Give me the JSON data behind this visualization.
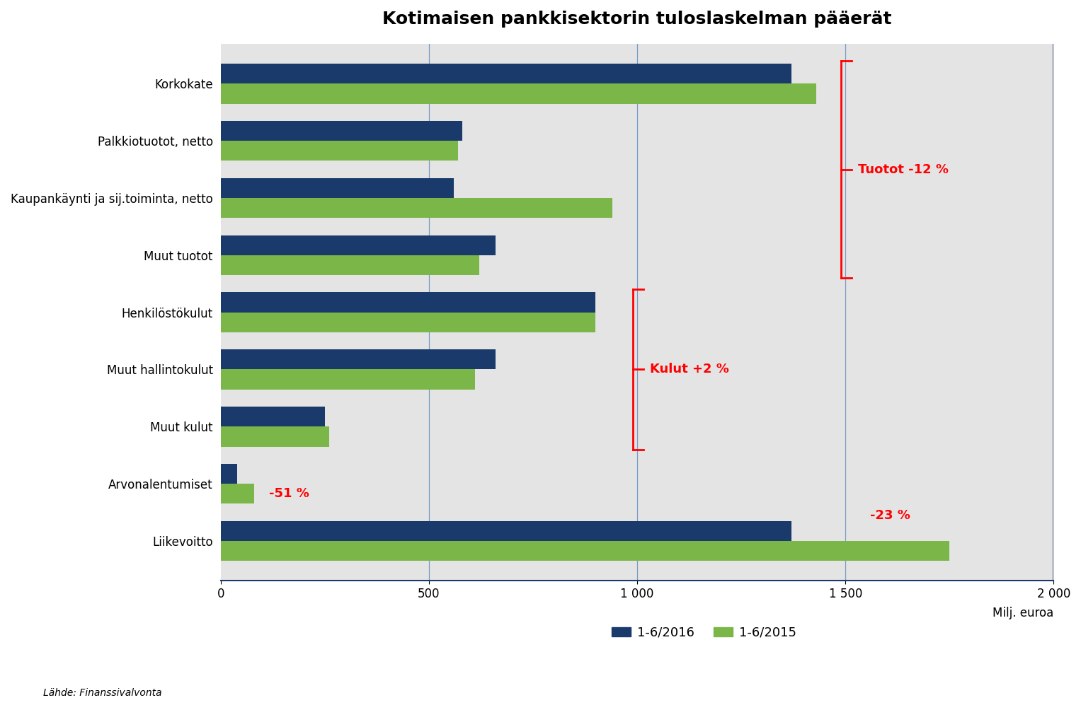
{
  "title": "Kotimaisen pankkisektorin tuloslaskelman pääerät",
  "categories": [
    "Korkokate",
    "Palkkiotuotot, netto",
    "Kaupankäynti ja sij.toiminta, netto",
    "Muut tuotot",
    "Henkilöstökulut",
    "Muut hallintokulut",
    "Muut kulut",
    "Arvonalentumiset",
    "Liikevoitto"
  ],
  "values_2016": [
    1370,
    580,
    560,
    660,
    900,
    660,
    250,
    40,
    1370
  ],
  "values_2015": [
    1430,
    570,
    940,
    620,
    900,
    610,
    260,
    80,
    1750
  ],
  "color_2016": "#1a3a6b",
  "color_2015": "#7ab648",
  "bg_color": "#e4e4e4",
  "xlabel": "Milj. euroa",
  "xlim": [
    0,
    2000
  ],
  "xticks": [
    0,
    500,
    1000,
    1500,
    2000
  ],
  "xtick_labels": [
    "0",
    "500",
    "1 000",
    "1 500",
    "2 000"
  ],
  "vlines": [
    500,
    1000,
    1500
  ],
  "annotation_51": "-51 %",
  "annotation_23": "-23 %",
  "annotation_tuotot": "Tuotot -12 %",
  "annotation_kulut": "Kulut +2 %",
  "source_text": "Lähde: Finanssivalvonta",
  "legend_2016": "1-6/2016",
  "legend_2015": "1-6/2015",
  "title_fontsize": 18,
  "label_fontsize": 12,
  "tick_fontsize": 12,
  "annotation_fontsize": 13
}
